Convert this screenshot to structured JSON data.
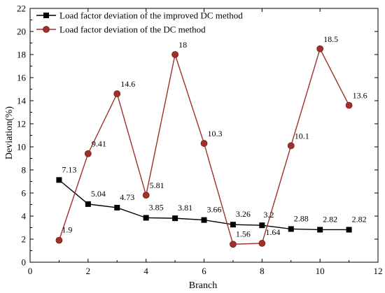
{
  "chart_data": {
    "type": "line",
    "xlabel": "Branch",
    "ylabel": "Deviation(%)",
    "xlim": [
      0,
      12
    ],
    "ylim": [
      0,
      22
    ],
    "xticks": [
      0,
      2,
      4,
      6,
      8,
      10,
      12
    ],
    "yticks": [
      0,
      2,
      4,
      6,
      8,
      10,
      12,
      14,
      16,
      18,
      20,
      22
    ],
    "x": [
      1,
      2,
      3,
      4,
      5,
      6,
      7,
      8,
      9,
      10,
      11
    ],
    "grid": false,
    "legend_position": "top-left",
    "series": [
      {
        "name": "Load factor deviation of the improved DC method",
        "values": [
          7.13,
          5.04,
          4.73,
          3.85,
          3.81,
          3.66,
          3.26,
          3.2,
          2.88,
          2.82,
          2.82
        ],
        "labels": [
          "7.13",
          "5.04",
          "4.73",
          "3.85",
          "3.81",
          "3.66",
          "3.26",
          "3.2",
          "2.88",
          "2.82",
          "2.82"
        ],
        "color": "#000000",
        "marker": "square"
      },
      {
        "name": "Load factor deviation of the DC method",
        "values": [
          1.9,
          9.41,
          14.6,
          5.81,
          18,
          10.3,
          1.56,
          1.64,
          10.1,
          18.5,
          13.6
        ],
        "labels": [
          "1.9",
          "9.41",
          "14.6",
          "5.81",
          "18",
          "10.3",
          "1.56",
          "1.64",
          "10.1",
          "18.5",
          "13.6"
        ],
        "color": "#a0302a",
        "marker": "circle"
      }
    ]
  }
}
